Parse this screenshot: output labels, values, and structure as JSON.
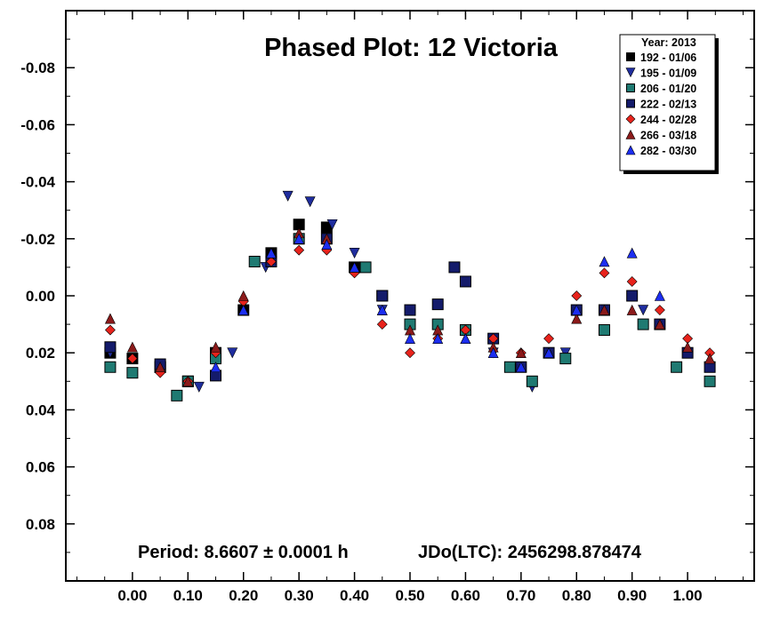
{
  "chart_data": {
    "type": "scatter",
    "title": "Phased Plot: 12 Victoria",
    "xlabel": "",
    "ylabel": "",
    "xlim": [
      -0.12,
      1.12
    ],
    "ylim": [
      -0.1,
      0.1
    ],
    "y_inverted": true,
    "grid": false,
    "legend_position": "top-right",
    "x_ticks": [
      0.0,
      0.1,
      0.2,
      0.3,
      0.4,
      0.5,
      0.6,
      0.7,
      0.8,
      0.9,
      1.0
    ],
    "x_tick_labels": [
      "0.00",
      "0.10",
      "0.20",
      "0.30",
      "0.40",
      "0.50",
      "0.60",
      "0.70",
      "0.80",
      "0.90",
      "1.00"
    ],
    "y_ticks": [
      -0.08,
      -0.06,
      -0.04,
      -0.02,
      0.0,
      0.02,
      0.04,
      0.06,
      0.08
    ],
    "y_tick_labels": [
      "-0.08",
      "-0.06",
      "-0.04",
      "-0.02",
      "0.00",
      "0.02",
      "0.04",
      "0.06",
      "0.08"
    ],
    "legend_title": "Year: 2013",
    "footer": {
      "period": "Period: 8.6607 ± 0.0001 h",
      "jdo": "JDo(LTC): 2456298.878474"
    },
    "series": [
      {
        "name": "192 - 01/06",
        "marker": "square",
        "color": "#000000",
        "x": [
          -0.04,
          0.0,
          0.05,
          0.1,
          0.15,
          0.2,
          0.25,
          0.3,
          0.35,
          0.4,
          0.45
        ],
        "y": [
          0.02,
          0.022,
          0.025,
          0.03,
          0.02,
          0.005,
          -0.015,
          -0.025,
          -0.024,
          -0.01,
          0.0
        ]
      },
      {
        "name": "195 - 01/09",
        "marker": "triangle-down",
        "color": "#1f2d9e",
        "x": [
          -0.04,
          0.05,
          0.12,
          0.18,
          0.24,
          0.28,
          0.32,
          0.36,
          0.4,
          0.45,
          0.55,
          0.65,
          0.72,
          0.78,
          0.85,
          0.92,
          1.0,
          1.04
        ],
        "y": [
          0.02,
          0.025,
          0.032,
          0.02,
          -0.01,
          -0.035,
          -0.033,
          -0.025,
          -0.015,
          0.005,
          0.01,
          0.02,
          0.032,
          0.02,
          0.005,
          0.005,
          0.02,
          0.025
        ]
      },
      {
        "name": "206 - 01/20",
        "marker": "square",
        "color": "#1f7a72",
        "x": [
          -0.04,
          0.0,
          0.05,
          0.08,
          0.1,
          0.15,
          0.22,
          0.3,
          0.42,
          0.5,
          0.55,
          0.6,
          0.68,
          0.72,
          0.78,
          0.85,
          0.92,
          0.98,
          1.04
        ],
        "y": [
          0.025,
          0.027,
          0.025,
          0.035,
          0.03,
          0.022,
          -0.012,
          -0.02,
          -0.01,
          0.01,
          0.01,
          0.012,
          0.025,
          0.03,
          0.022,
          0.012,
          0.01,
          0.025,
          0.03
        ]
      },
      {
        "name": "222 - 02/13",
        "marker": "square",
        "color": "#141b6b",
        "x": [
          -0.04,
          0.05,
          0.15,
          0.25,
          0.35,
          0.45,
          0.5,
          0.55,
          0.58,
          0.6,
          0.65,
          0.7,
          0.75,
          0.8,
          0.85,
          0.9,
          0.95,
          1.0,
          1.04
        ],
        "y": [
          0.018,
          0.024,
          0.028,
          -0.012,
          -0.02,
          0.0,
          0.005,
          0.003,
          -0.01,
          -0.005,
          0.015,
          0.025,
          0.02,
          0.005,
          0.005,
          0.0,
          0.01,
          0.02,
          0.025
        ]
      },
      {
        "name": "244 - 02/28",
        "marker": "diamond",
        "color": "#e8231c",
        "x": [
          -0.04,
          0.0,
          0.05,
          0.1,
          0.15,
          0.2,
          0.25,
          0.3,
          0.35,
          0.4,
          0.45,
          0.5,
          0.55,
          0.6,
          0.65,
          0.7,
          0.75,
          0.8,
          0.85,
          0.9,
          0.95,
          1.0,
          1.04
        ],
        "y": [
          0.012,
          0.022,
          0.027,
          0.03,
          0.02,
          0.002,
          -0.012,
          -0.016,
          -0.016,
          -0.008,
          0.01,
          0.02,
          0.015,
          0.012,
          0.015,
          0.02,
          0.015,
          0.0,
          -0.008,
          -0.005,
          0.005,
          0.015,
          0.02
        ]
      },
      {
        "name": "266 - 03/18",
        "marker": "triangle-up",
        "color": "#8b1a1a",
        "x": [
          -0.04,
          0.0,
          0.05,
          0.1,
          0.15,
          0.2,
          0.25,
          0.3,
          0.35,
          0.4,
          0.45,
          0.5,
          0.55,
          0.6,
          0.65,
          0.7,
          0.75,
          0.8,
          0.85,
          0.9,
          0.95,
          1.0,
          1.04
        ],
        "y": [
          0.008,
          0.018,
          0.025,
          0.03,
          0.018,
          0.0,
          -0.015,
          -0.022,
          -0.02,
          -0.01,
          0.005,
          0.012,
          0.012,
          0.015,
          0.018,
          0.02,
          0.02,
          0.008,
          0.005,
          0.005,
          0.01,
          0.018,
          0.022
        ]
      },
      {
        "name": "282 - 03/30",
        "marker": "triangle-up",
        "color": "#1c2ef0",
        "x": [
          0.15,
          0.2,
          0.25,
          0.3,
          0.35,
          0.4,
          0.45,
          0.5,
          0.55,
          0.6,
          0.65,
          0.7,
          0.75,
          0.8,
          0.85,
          0.9,
          0.95
        ],
        "y": [
          0.025,
          0.005,
          -0.015,
          -0.02,
          -0.018,
          -0.01,
          0.005,
          0.015,
          0.015,
          0.015,
          0.02,
          0.025,
          0.02,
          0.005,
          -0.012,
          -0.015,
          0.0
        ]
      }
    ]
  }
}
